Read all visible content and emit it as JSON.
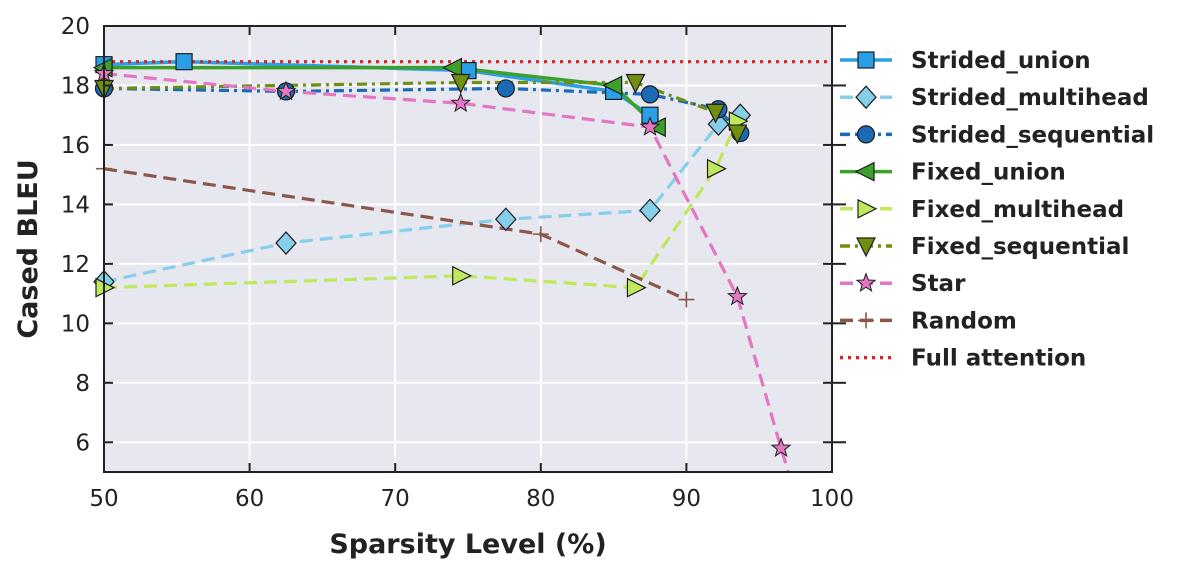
{
  "chart_data": {
    "type": "line",
    "title": "",
    "xlabel": "Sparsity Level (%)",
    "ylabel": "Cased BLEU",
    "xlim": [
      50,
      100
    ],
    "ylim": [
      5,
      20
    ],
    "xticks": [
      50,
      60,
      70,
      80,
      90,
      100
    ],
    "yticks": [
      6,
      8,
      10,
      12,
      14,
      16,
      18,
      20
    ],
    "grid": true,
    "legend_position": "right, outside plot area",
    "series": [
      {
        "name": "Strided_union",
        "color": "#2b9fe6",
        "line": "solid",
        "marker": "square",
        "x": [
          50,
          55.5,
          75,
          85,
          87.5
        ],
        "y": [
          18.7,
          18.8,
          18.5,
          17.8,
          17.0
        ]
      },
      {
        "name": "Strided_multihead",
        "color": "#87ceeb",
        "line": "dashed",
        "marker": "diamond",
        "x": [
          50,
          62.5,
          77.6,
          87.5,
          92.2,
          93.7
        ],
        "y": [
          11.4,
          12.7,
          13.5,
          13.8,
          16.7,
          17.0
        ]
      },
      {
        "name": "Strided_sequential",
        "color": "#1a6ab5",
        "line": "dashdot",
        "marker": "circle",
        "x": [
          50,
          62.5,
          77.6,
          87.5,
          92.2,
          93.7
        ],
        "y": [
          17.9,
          17.8,
          17.9,
          17.7,
          17.2,
          16.4
        ]
      },
      {
        "name": "Fixed_union",
        "color": "#3ca02c",
        "line": "solid",
        "marker": "triangle-left",
        "x": [
          50,
          74,
          85,
          88
        ],
        "y": [
          18.6,
          18.6,
          18.0,
          16.6
        ]
      },
      {
        "name": "Fixed_multihead",
        "color": "#bfe85c",
        "line": "dashed",
        "marker": "triangle-right",
        "x": [
          50,
          74.5,
          86.5,
          92,
          93.5
        ],
        "y": [
          11.2,
          11.6,
          11.2,
          15.2,
          16.8
        ]
      },
      {
        "name": "Fixed_sequential",
        "color": "#6f8f10",
        "line": "dashdot",
        "marker": "triangle-down",
        "x": [
          50,
          74.5,
          86.5,
          92,
          93.5
        ],
        "y": [
          17.9,
          18.1,
          18.1,
          17.1,
          16.4
        ]
      },
      {
        "name": "Star",
        "color": "#e377c2",
        "line": "dashed",
        "marker": "star",
        "x": [
          50,
          62.5,
          74.5,
          87.5,
          93.5,
          96.5,
          97.0
        ],
        "y": [
          18.4,
          17.8,
          17.4,
          16.6,
          10.9,
          5.8,
          5.0
        ]
      },
      {
        "name": "Random",
        "color": "#8c564b",
        "line": "dashed",
        "marker": "plus",
        "x": [
          50,
          80,
          90
        ],
        "y": [
          15.2,
          13.0,
          10.8
        ]
      },
      {
        "name": "Full attention",
        "color": "#d62728",
        "line": "dotted",
        "marker": "none",
        "x": [
          50,
          100
        ],
        "y": [
          18.8,
          18.8
        ]
      }
    ]
  }
}
